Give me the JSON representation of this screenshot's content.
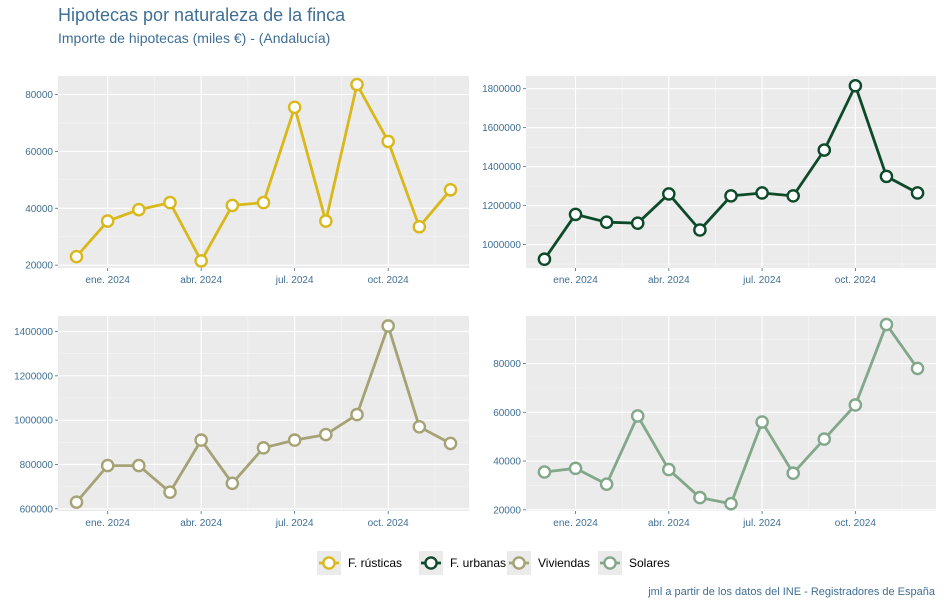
{
  "header": {
    "title": "Hipotecas por naturaleza de la finca",
    "subtitle": "Importe de hipotecas (miles €) - (Andalucía)"
  },
  "caption": "jml a partir de los datos del INE - Registradores de España",
  "chart_data": {
    "type": "line",
    "x_months": [
      "2023-12",
      "2024-01",
      "2024-02",
      "2024-03",
      "2024-04",
      "2024-05",
      "2024-06",
      "2024-07",
      "2024-08",
      "2024-09",
      "2024-10",
      "2024-11",
      "2024-12"
    ],
    "x_tick_labels": [
      "ene. 2024",
      "abr. 2024",
      "jul. 2024",
      "oct. 2024"
    ],
    "x_tick_positions": [
      1,
      4,
      7,
      10
    ],
    "series": [
      {
        "name": "F. rústicas",
        "color": "#d9b81b",
        "values": [
          23000,
          35500,
          39500,
          42000,
          21500,
          41000,
          42000,
          75500,
          35500,
          83500,
          63500,
          33500,
          46500
        ],
        "ylim": [
          19000,
          86500
        ],
        "yticks": [
          20000,
          40000,
          60000,
          80000
        ]
      },
      {
        "name": "F. urbanas",
        "color": "#0d4a2a",
        "values": [
          925000,
          1155000,
          1115000,
          1110000,
          1260000,
          1075000,
          1250000,
          1265000,
          1250000,
          1485000,
          1815000,
          1350000,
          1265000
        ],
        "ylim": [
          880000,
          1865000
        ],
        "yticks": [
          1000000,
          1200000,
          1400000,
          1600000,
          1800000
        ]
      },
      {
        "name": "Viviendas",
        "color": "#a5a275",
        "values": [
          630000,
          795000,
          795000,
          675000,
          910000,
          715000,
          875000,
          910000,
          935000,
          1025000,
          1425000,
          970000,
          895000
        ],
        "ylim": [
          590000,
          1470000
        ],
        "yticks": [
          600000,
          800000,
          1000000,
          1200000,
          1400000
        ]
      },
      {
        "name": "Solares",
        "color": "#82a78a",
        "values": [
          35500,
          37000,
          30500,
          58500,
          36500,
          25000,
          22500,
          56000,
          35000,
          49000,
          63000,
          96000,
          78000
        ],
        "ylim": [
          19500,
          99500
        ],
        "yticks": [
          20000,
          40000,
          60000,
          80000
        ]
      }
    ]
  }
}
